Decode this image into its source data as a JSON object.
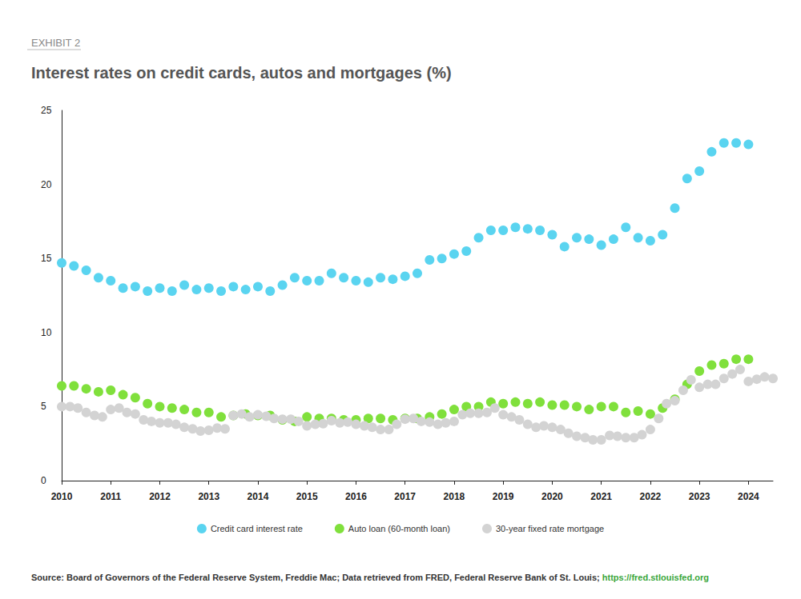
{
  "chart_data": {
    "type": "scatter",
    "exhibit_label": "EXHIBIT 2",
    "title": "Interest rates on credit cards, autos and mortgages (%)",
    "source": "Source: Board of Governors of the Federal Reserve System, Freddie Mac; Data retrieved from FRED, Federal Reserve Bank of St. Louis; ",
    "source_link": "https://fred.stlouisfed.org",
    "xlim": [
      2010,
      2024.5
    ],
    "xticks": [
      2010,
      2011,
      2012,
      2013,
      2014,
      2015,
      2016,
      2017,
      2018,
      2019,
      2020,
      2021,
      2022,
      2023,
      2024
    ],
    "ylim": [
      0,
      25
    ],
    "yticks": [
      0,
      5,
      10,
      15,
      20,
      25
    ],
    "grid": false,
    "legend": "bottom",
    "marker": "circle",
    "series": [
      {
        "name": "Credit card interest rate",
        "color": "#5ad4f0",
        "x": [
          2010,
          2010.25,
          2010.5,
          2010.75,
          2011,
          2011.25,
          2011.5,
          2011.75,
          2012,
          2012.25,
          2012.5,
          2012.75,
          2013,
          2013.25,
          2013.5,
          2013.75,
          2014,
          2014.25,
          2014.5,
          2014.75,
          2015,
          2015.25,
          2015.5,
          2015.75,
          2016,
          2016.25,
          2016.5,
          2016.75,
          2017,
          2017.25,
          2017.5,
          2017.75,
          2018,
          2018.25,
          2018.5,
          2018.75,
          2019,
          2019.25,
          2019.5,
          2019.75,
          2020,
          2020.25,
          2020.5,
          2020.75,
          2021,
          2021.25,
          2021.5,
          2021.75,
          2022,
          2022.25,
          2022.5,
          2022.75,
          2023,
          2023.25,
          2023.5,
          2023.75,
          2024
        ],
        "values": [
          14.7,
          14.5,
          14.2,
          13.7,
          13.5,
          13.0,
          13.1,
          12.8,
          13.0,
          12.8,
          13.2,
          12.9,
          13.0,
          12.8,
          13.1,
          12.9,
          13.1,
          12.8,
          13.2,
          13.7,
          13.5,
          13.5,
          14.0,
          13.7,
          13.5,
          13.4,
          13.7,
          13.6,
          13.8,
          14.0,
          14.9,
          15.0,
          15.3,
          15.5,
          16.4,
          16.9,
          16.9,
          17.1,
          17.0,
          16.9,
          16.6,
          15.8,
          16.4,
          16.3,
          15.9,
          16.3,
          17.1,
          16.4,
          16.2,
          16.6,
          18.4,
          20.4,
          20.9,
          22.2,
          22.8,
          22.8,
          22.7
        ]
      },
      {
        "name": "Auto loan (60-month loan)",
        "color": "#80e03c",
        "x": [
          2010,
          2010.25,
          2010.5,
          2010.75,
          2011,
          2011.25,
          2011.5,
          2011.75,
          2012,
          2012.25,
          2012.5,
          2012.75,
          2013,
          2013.25,
          2013.5,
          2013.75,
          2014,
          2014.25,
          2014.5,
          2014.75,
          2015,
          2015.25,
          2015.5,
          2015.75,
          2016,
          2016.25,
          2016.5,
          2016.75,
          2017,
          2017.25,
          2017.5,
          2017.75,
          2018,
          2018.25,
          2018.5,
          2018.75,
          2019,
          2019.25,
          2019.5,
          2019.75,
          2020,
          2020.25,
          2020.5,
          2020.75,
          2021,
          2021.25,
          2021.5,
          2021.75,
          2022,
          2022.25,
          2022.5,
          2022.75,
          2023,
          2023.25,
          2023.5,
          2023.75,
          2024
        ],
        "values": [
          6.4,
          6.4,
          6.2,
          6.0,
          6.1,
          5.8,
          5.6,
          5.2,
          5.0,
          4.9,
          4.8,
          4.6,
          4.6,
          4.3,
          4.4,
          4.5,
          4.4,
          4.4,
          4.1,
          4.0,
          4.3,
          4.2,
          4.2,
          4.1,
          4.1,
          4.2,
          4.2,
          4.1,
          4.2,
          4.2,
          4.3,
          4.5,
          4.8,
          5.0,
          5.0,
          5.3,
          5.2,
          5.3,
          5.2,
          5.3,
          5.1,
          5.1,
          5.0,
          4.8,
          5.0,
          5.0,
          4.6,
          4.7,
          4.5,
          4.9,
          5.5,
          6.5,
          7.4,
          7.8,
          7.9,
          8.2,
          8.2
        ]
      },
      {
        "name": "30-year fixed rate mortgage",
        "color": "#d3d3d3",
        "x": [
          2010,
          2010.17,
          2010.33,
          2010.5,
          2010.67,
          2010.83,
          2011,
          2011.17,
          2011.33,
          2011.5,
          2011.67,
          2011.83,
          2012,
          2012.17,
          2012.33,
          2012.5,
          2012.67,
          2012.83,
          2013,
          2013.17,
          2013.33,
          2013.5,
          2013.67,
          2013.83,
          2014,
          2014.17,
          2014.33,
          2014.5,
          2014.67,
          2014.83,
          2015,
          2015.17,
          2015.33,
          2015.5,
          2015.67,
          2015.83,
          2016,
          2016.17,
          2016.33,
          2016.5,
          2016.67,
          2016.83,
          2017,
          2017.17,
          2017.33,
          2017.5,
          2017.67,
          2017.83,
          2018,
          2018.17,
          2018.33,
          2018.5,
          2018.67,
          2018.83,
          2019,
          2019.17,
          2019.33,
          2019.5,
          2019.67,
          2019.83,
          2020,
          2020.17,
          2020.33,
          2020.5,
          2020.67,
          2020.83,
          2021,
          2021.17,
          2021.33,
          2021.5,
          2021.67,
          2021.83,
          2022,
          2022.17,
          2022.33,
          2022.5,
          2022.67,
          2022.83,
          2023,
          2023.17,
          2023.33,
          2023.5,
          2023.67,
          2023.83,
          2024,
          2024.17,
          2024.33,
          2024.5
        ],
        "values": [
          5.0,
          5.0,
          4.9,
          4.6,
          4.4,
          4.3,
          4.8,
          4.9,
          4.6,
          4.5,
          4.1,
          4.0,
          3.9,
          3.9,
          3.8,
          3.6,
          3.5,
          3.35,
          3.4,
          3.55,
          3.5,
          4.4,
          4.5,
          4.3,
          4.45,
          4.35,
          4.2,
          4.15,
          4.15,
          4.0,
          3.7,
          3.8,
          3.85,
          4.05,
          3.9,
          3.95,
          3.8,
          3.7,
          3.6,
          3.45,
          3.45,
          3.8,
          4.15,
          4.2,
          4.0,
          3.95,
          3.8,
          3.9,
          4.0,
          4.45,
          4.55,
          4.55,
          4.6,
          4.9,
          4.45,
          4.3,
          4.1,
          3.8,
          3.6,
          3.7,
          3.6,
          3.45,
          3.2,
          3.0,
          2.9,
          2.75,
          2.75,
          3.05,
          3.0,
          2.9,
          2.9,
          3.1,
          3.45,
          4.2,
          5.2,
          5.4,
          6.1,
          6.8,
          6.3,
          6.5,
          6.5,
          6.9,
          7.2,
          7.5,
          6.7,
          6.85,
          7.0,
          6.9
        ]
      }
    ]
  }
}
